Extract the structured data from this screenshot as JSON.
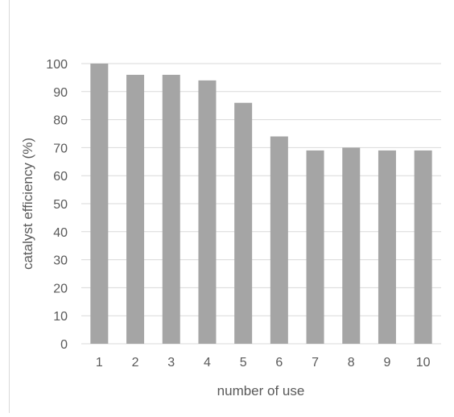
{
  "chart_data": {
    "type": "bar",
    "title": "",
    "xlabel": "number of use",
    "ylabel": "catalyst efficiency (%)",
    "categories": [
      "1",
      "2",
      "3",
      "4",
      "5",
      "6",
      "7",
      "8",
      "9",
      "10"
    ],
    "values": [
      100,
      96,
      96,
      94,
      86,
      74,
      69,
      70,
      69,
      69
    ],
    "ylim": [
      0,
      100
    ],
    "yticks": [
      "0",
      "10",
      "20",
      "30",
      "40",
      "50",
      "60",
      "70",
      "80",
      "90",
      "100"
    ],
    "grid": true,
    "legend": "none",
    "colors": {
      "bar": "#a5a5a5",
      "grid": "#d9d9d9",
      "text": "#595959",
      "frame": "#d9d9d9"
    }
  }
}
